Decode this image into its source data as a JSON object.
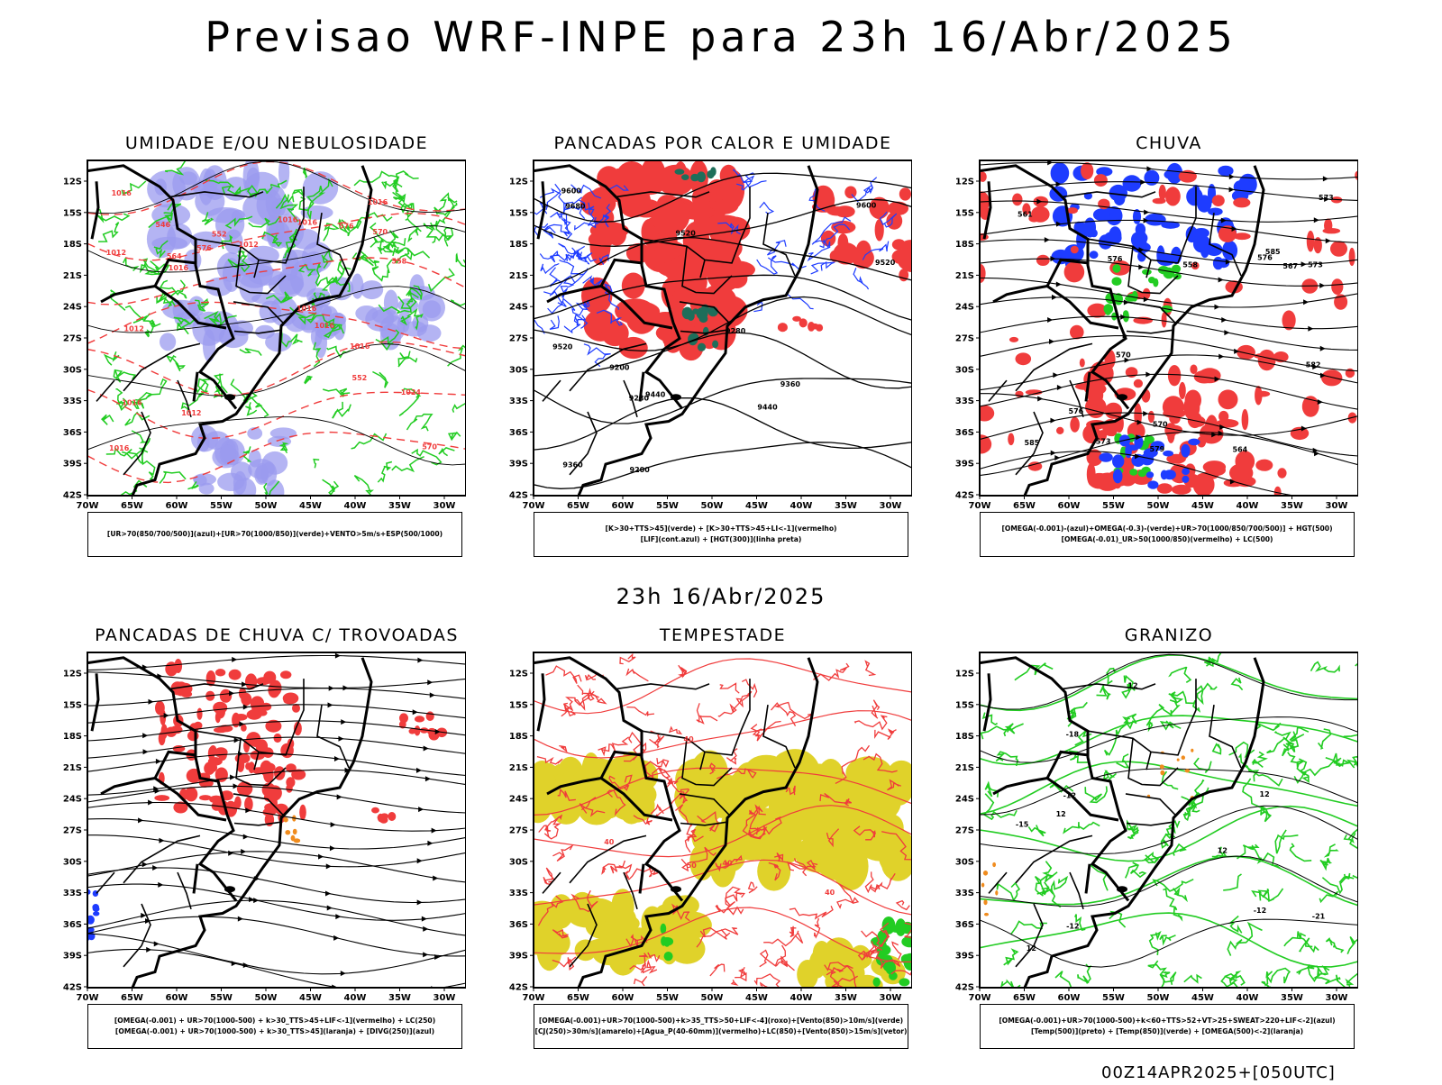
{
  "header": {
    "title": "Previsao WRF-INPE  para 23h 16/Abr/2025",
    "middle_date": "23h 16/Abr/2025",
    "run_label": "00Z14APR2025+[050UTC]"
  },
  "axes": {
    "lat_labels": [
      "12S",
      "15S",
      "18S",
      "21S",
      "24S",
      "27S",
      "30S",
      "33S",
      "36S",
      "39S",
      "42S"
    ],
    "lon_labels": [
      "70W",
      "65W",
      "60W",
      "55W",
      "50W",
      "45W",
      "40W",
      "35W",
      "30W"
    ]
  },
  "panels": [
    {
      "id": "umidade",
      "title": "UMIDADE E/OU NEBULOSIDADE",
      "legend": [
        "[UR>70(850/700/500)](azul)+[UR>70(1000/850)](verde)+VENTO>5m/s+ESP(500/1000)"
      ],
      "labels": [
        "1012",
        "1012",
        "1012",
        "1012",
        "1016",
        "1016",
        "1016",
        "1016",
        "1016",
        "1016",
        "1016",
        "1016",
        "1024",
        "1016",
        "1016",
        "576",
        "576",
        "570",
        "570",
        "564",
        "558",
        "552",
        "552",
        "546"
      ]
    },
    {
      "id": "pancadas-calor",
      "title": "PANCADAS POR CALOR E UMIDADE",
      "legend": [
        "[K>30+TTS>45](verde) + [K>30+TTS>45+LI<-1](vermelho)",
        "[LIF](cont.azul) + [HGT(300)](linha preta)"
      ],
      "labels": [
        "9680",
        "9600",
        "9520",
        "9600",
        "9520",
        "9440",
        "9520",
        "9440",
        "9360",
        "9360",
        "9280",
        "9280",
        "9200",
        "9200"
      ]
    },
    {
      "id": "chuva",
      "title": "CHUVA",
      "legend": [
        "[OMEGA(-0.001)-(azul)+OMEGA(-0.3)-(verde)+UR>70(1000/850/700/500)] + HGT(500)",
        "[OMEGA(-0.01)_UR>50(1000/850)(vermelho) + LC(500)"
      ],
      "labels": [
        "585",
        "585",
        "582",
        "579",
        "576",
        "576",
        "573",
        "573",
        "570",
        "567",
        "564",
        "561",
        "558",
        "576",
        "573",
        "570"
      ]
    },
    {
      "id": "pancadas-trovoadas",
      "title": "PANCADAS DE CHUVA C/ TROVOADAS",
      "legend": [
        "[OMEGA(-0.001) + UR>70(1000-500) + k>30_TTS>45+LIF<-1](vermelho) + LC(250)",
        "[OMEGA(-0.001) + UR>70(1000-500) + k>30_TTS>45](laranja) + [DIVG(250)](azul)"
      ],
      "labels": []
    },
    {
      "id": "tempestade",
      "title": "TEMPESTADE",
      "legend": [
        "[OMEGA(-0.001)+UR>70(1000-500)+k>35_TTS>50+LIF<-4](roxo)+[Vento(850)>10m/s](verde)",
        "[CJ(250)>30m/s](amarelo)+[Agua_P(40-60mm)](vermelho)+LC(850)+[Vento(850)>15m/s](vetor)"
      ],
      "labels": [
        "40",
        "50",
        "40",
        "40",
        "40"
      ]
    },
    {
      "id": "granizo",
      "title": "GRANIZO",
      "legend": [
        "[OMEGA(-0.001)+UR>70(1000-500)+k<60+TTS>52+VT>25+SWEAT>220+LIF<-2](azul)",
        "[Temp(500)](preto) + [Temp(850)](verde) + [OMEGA(500)<-2](laranja)"
      ],
      "labels": [
        "-12",
        "-12",
        "-12",
        "-15",
        "-18",
        "-21",
        "12",
        "12",
        "12",
        "12",
        "12"
      ]
    }
  ],
  "colors": {
    "red": "#f03c3c",
    "green": "#22cc22",
    "blue": "#1e3cff",
    "lavender": "#9b9bef",
    "yellow": "#e0d22a",
    "orange": "#f08c1e",
    "teal": "#1e6e5a",
    "black": "#000000"
  }
}
